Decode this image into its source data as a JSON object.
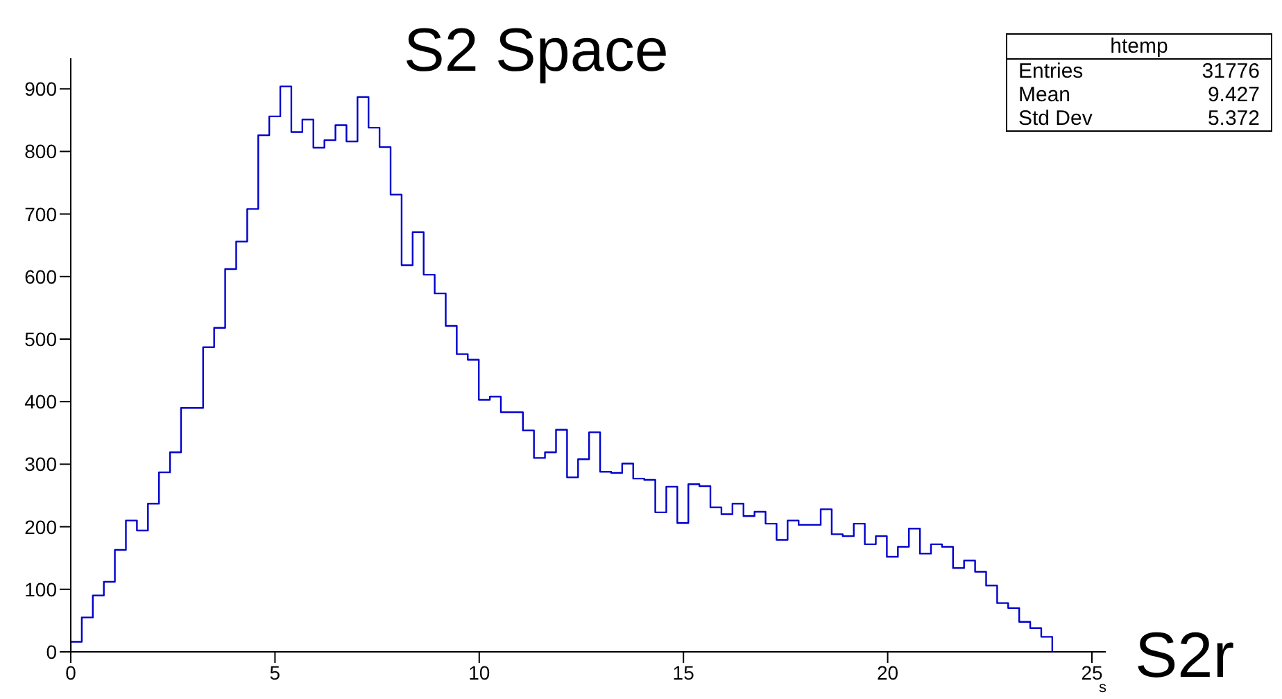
{
  "chart_data": {
    "type": "histogram",
    "title": "S2 Space",
    "xlabel": "s",
    "annotations": [
      "htemp",
      "Entries 31776",
      "Mean 9.427",
      "Std Dev 5.372",
      "S2r"
    ],
    "bins": [
      0,
      0.27,
      0.54,
      0.81,
      1.08,
      1.35,
      1.62,
      1.89,
      2.16,
      2.43,
      2.7,
      2.97,
      3.24,
      3.51,
      3.78,
      4.05,
      4.32,
      4.59,
      4.86,
      5.13,
      5.4,
      5.67,
      5.94,
      6.21,
      6.48,
      6.75,
      7.02,
      7.29,
      7.56,
      7.83,
      8.1,
      8.37,
      8.64,
      8.91,
      9.18,
      9.45,
      9.72,
      9.99,
      10.26,
      10.53,
      10.8,
      11.07,
      11.34,
      11.61,
      11.88,
      12.15,
      12.42,
      12.69,
      12.96,
      13.23,
      13.5,
      13.77,
      14.04,
      14.31,
      14.58,
      14.85,
      15.12,
      15.39,
      15.66,
      15.93,
      16.2,
      16.47,
      16.74,
      17.01,
      17.28,
      17.55,
      17.82,
      18.09,
      18.36,
      18.63,
      18.9,
      19.17,
      19.44,
      19.71,
      19.98,
      20.25,
      20.52,
      20.79,
      21.06,
      21.33,
      21.6,
      21.87,
      22.14,
      22.41,
      22.68,
      22.95,
      23.22,
      23.49,
      23.76,
      24.03
    ],
    "values": [
      16,
      55,
      90,
      112,
      163,
      210,
      194,
      237,
      287,
      319,
      390,
      390,
      487,
      518,
      612,
      656,
      708,
      826,
      856,
      904,
      831,
      851,
      806,
      818,
      842,
      816,
      887,
      838,
      807,
      731,
      618,
      671,
      603,
      573,
      521,
      476,
      467,
      403,
      408,
      383,
      383,
      354,
      310,
      319,
      355,
      279,
      308,
      351,
      288,
      286,
      301,
      277,
      275,
      223,
      264,
      206,
      268,
      265,
      231,
      220,
      237,
      217,
      224,
      205,
      179,
      210,
      203,
      203,
      228,
      188,
      185,
      205,
      172,
      185,
      152,
      168,
      197,
      157,
      172,
      168,
      134,
      146,
      128,
      106,
      78,
      70,
      48,
      38,
      24
    ],
    "color": "#0000cc",
    "xlim": [
      0,
      25.34
    ],
    "xticks": [
      0,
      5,
      10,
      15,
      20,
      25
    ],
    "ylim": [
      0,
      949
    ],
    "yticks": [
      0,
      100,
      200,
      300,
      400,
      500,
      600,
      700,
      800,
      900
    ],
    "grid": false
  }
}
